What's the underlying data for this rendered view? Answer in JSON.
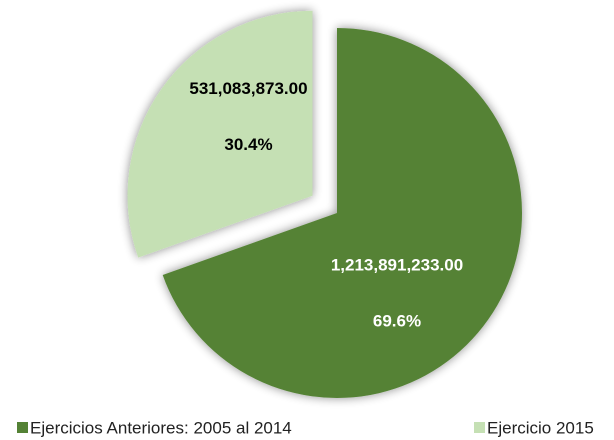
{
  "chart_data": {
    "type": "pie",
    "categories": [
      "Ejercicios Anteriores: 2005 al 2014",
      "Ejercicio 2015"
    ],
    "values": [
      1213891233.0,
      531083873.0
    ],
    "value_labels": [
      "1,213,891,233.00",
      "531,083,873.00"
    ],
    "percentages": [
      69.6,
      30.4
    ],
    "percentage_labels": [
      "69.6%",
      "30.4%"
    ],
    "colors": [
      "#548235",
      "#c5e0b4"
    ],
    "label_colors": [
      "#ffffff",
      "#000000"
    ],
    "exploded": [
      false,
      true
    ],
    "legend": "bottom"
  }
}
